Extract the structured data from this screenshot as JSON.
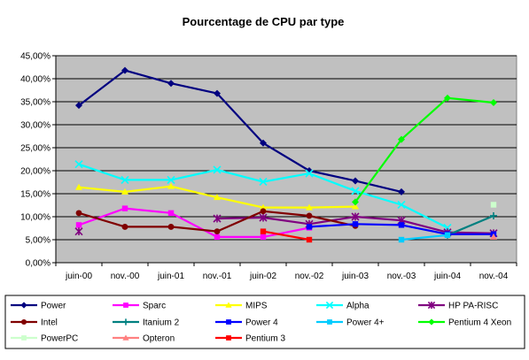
{
  "chart_data": {
    "type": "line",
    "title": "Pourcentage de CPU par type",
    "xlabel": "",
    "ylabel": "",
    "ylim": [
      0,
      45
    ],
    "y_ticks": [
      "0,00%",
      "5,00%",
      "10,00%",
      "15,00%",
      "20,00%",
      "25,00%",
      "30,00%",
      "35,00%",
      "40,00%",
      "45,00%"
    ],
    "categories": [
      "juin-00",
      "nov.-00",
      "juin-01",
      "nov.-01",
      "juin-02",
      "nov.-02",
      "juin-03",
      "nov.-03",
      "juin-04",
      "nov.-04"
    ],
    "grid": true,
    "legend_position": "bottom",
    "plot_background": "#c0c0c0",
    "series": [
      {
        "name": "Power",
        "color": "#000080",
        "marker": "diamond",
        "values": [
          34.2,
          41.8,
          39.0,
          36.8,
          26.0,
          20.0,
          17.8,
          15.4,
          null,
          null
        ]
      },
      {
        "name": "Sparc",
        "color": "#ff00ff",
        "marker": "square",
        "values": [
          8.2,
          11.8,
          10.8,
          5.6,
          5.6,
          7.6,
          null,
          null,
          null,
          null
        ]
      },
      {
        "name": "MIPS",
        "color": "#ffff00",
        "marker": "triangle",
        "values": [
          16.4,
          15.4,
          16.6,
          14.2,
          12.0,
          12.0,
          12.2,
          null,
          null,
          null
        ]
      },
      {
        "name": "Alpha",
        "color": "#00ffff",
        "marker": "x",
        "values": [
          21.4,
          18.0,
          18.0,
          20.2,
          17.6,
          19.4,
          15.6,
          12.6,
          7.6,
          null
        ]
      },
      {
        "name": "HP PA-RISC",
        "color": "#800080",
        "marker": "star",
        "values": [
          6.8,
          null,
          null,
          9.6,
          9.8,
          8.4,
          10.0,
          9.2,
          6.6,
          6.4
        ]
      },
      {
        "name": "Intel",
        "color": "#800000",
        "marker": "circle",
        "values": [
          10.8,
          7.8,
          7.8,
          6.8,
          11.2,
          10.2,
          8.0,
          null,
          null,
          null
        ]
      },
      {
        "name": "Itanium 2",
        "color": "#008080",
        "marker": "plus",
        "values": [
          null,
          null,
          null,
          null,
          null,
          null,
          null,
          null,
          6.0,
          10.2
        ]
      },
      {
        "name": "Power 4",
        "color": "#0000ff",
        "marker": "square",
        "values": [
          null,
          null,
          null,
          null,
          null,
          7.8,
          8.4,
          8.2,
          6.2,
          6.2
        ]
      },
      {
        "name": "Power 4+",
        "color": "#00ccff",
        "marker": "square",
        "values": [
          null,
          null,
          null,
          null,
          null,
          null,
          null,
          5.0,
          6.0,
          null
        ]
      },
      {
        "name": "Pentium 4 Xeon",
        "color": "#00ff00",
        "marker": "diamond",
        "values": [
          null,
          null,
          null,
          null,
          null,
          null,
          13.2,
          26.8,
          35.8,
          34.8
        ]
      },
      {
        "name": "PowerPC",
        "color": "#ccffcc",
        "marker": "square",
        "values": [
          null,
          null,
          null,
          null,
          null,
          null,
          null,
          null,
          null,
          12.6
        ]
      },
      {
        "name": "Opteron",
        "color": "#ff8080",
        "marker": "triangle",
        "values": [
          null,
          null,
          null,
          null,
          null,
          null,
          null,
          null,
          null,
          5.6
        ]
      },
      {
        "name": "Pentium 3",
        "color": "#ff0000",
        "marker": "square",
        "values": [
          null,
          null,
          null,
          null,
          6.8,
          5.0,
          null,
          null,
          null,
          null
        ]
      }
    ]
  }
}
